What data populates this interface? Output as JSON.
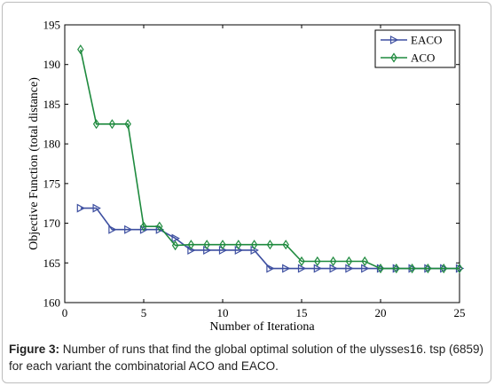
{
  "chart_data": {
    "type": "line",
    "xlabel": "Number of Iterationa",
    "ylabel": "Objective Function (total distance)",
    "xlim": [
      0,
      25
    ],
    "ylim": [
      160,
      195
    ],
    "xticks": [
      0,
      5,
      10,
      15,
      20,
      25
    ],
    "yticks": [
      160,
      165,
      170,
      175,
      180,
      185,
      190,
      195
    ],
    "grid": false,
    "legend_position": "top-right",
    "x": [
      1,
      2,
      3,
      4,
      5,
      6,
      7,
      8,
      9,
      10,
      11,
      12,
      13,
      14,
      15,
      16,
      17,
      18,
      19,
      20,
      21,
      22,
      23,
      24,
      25
    ],
    "series": [
      {
        "name": "EACO",
        "color": "#3d4fa0",
        "marker": "triangle-right",
        "values": [
          171.9,
          171.9,
          169.2,
          169.2,
          169.2,
          169.2,
          168.1,
          166.6,
          166.6,
          166.6,
          166.6,
          166.6,
          164.3,
          164.3,
          164.3,
          164.3,
          164.3,
          164.3,
          164.3,
          164.3,
          164.3,
          164.3,
          164.3,
          164.3,
          164.3
        ]
      },
      {
        "name": "ACO",
        "color": "#1e8a3e",
        "marker": "diamond",
        "values": [
          191.9,
          182.5,
          182.5,
          182.5,
          169.6,
          169.6,
          167.2,
          167.3,
          167.3,
          167.3,
          167.3,
          167.3,
          167.3,
          167.3,
          165.2,
          165.2,
          165.2,
          165.2,
          165.2,
          164.3,
          164.3,
          164.3,
          164.3,
          164.3,
          164.3
        ]
      }
    ]
  },
  "caption": {
    "label": "Figure 3:",
    "text": " Number of runs that find the global optimal solution of the ulysses16. tsp (6859) for each variant the combinatorial ACO and EACO."
  }
}
